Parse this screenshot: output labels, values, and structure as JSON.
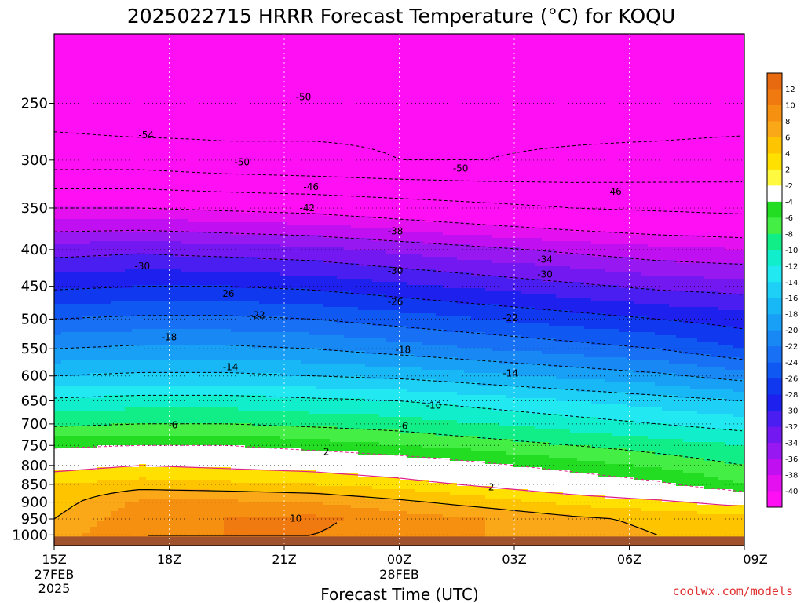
{
  "chart_data": {
    "type": "heatmap",
    "title": "2025022715 HRRR Forecast Temperature (°C) for KOQU",
    "xlabel": "Forecast Time (UTC)",
    "ylabel": "",
    "x_ticks": [
      {
        "hour": 0,
        "label": "15Z",
        "sub": [
          "27FEB",
          "2025"
        ]
      },
      {
        "hour": 3,
        "label": "18Z",
        "sub": []
      },
      {
        "hour": 6,
        "label": "21Z",
        "sub": []
      },
      {
        "hour": 9,
        "label": "00Z",
        "sub": [
          "28FEB"
        ]
      },
      {
        "hour": 12,
        "label": "03Z",
        "sub": []
      },
      {
        "hour": 15,
        "label": "06Z",
        "sub": []
      },
      {
        "hour": 18,
        "label": "09Z",
        "sub": []
      }
    ],
    "y_ticks": [
      250,
      300,
      350,
      400,
      450,
      500,
      550,
      600,
      650,
      700,
      750,
      800,
      850,
      900,
      950,
      1000
    ],
    "y_scale": "log-pressure, inverted",
    "y_range_hPa": [
      1035,
      200
    ],
    "x_range_hours": [
      0,
      18
    ],
    "colorbar": {
      "labels": [
        "12",
        "10",
        "8",
        "6",
        "4",
        "2",
        "-2",
        "-4",
        "-6",
        "-8",
        "-10",
        "-12",
        "-14",
        "-16",
        "-18",
        "-20",
        "-22",
        "-24",
        "-26",
        "-28",
        "-30",
        "-32",
        "-34",
        "-36",
        "-38",
        "-40"
      ],
      "colors": [
        "#e86a10",
        "#f07a10",
        "#f69010",
        "#fba818",
        "#ffc400",
        "#ffe000",
        "#fffa40",
        "#ffffff",
        "#22dd22",
        "#44ee44",
        "#11ee88",
        "#11eecc",
        "#22e8f2",
        "#1ed0f6",
        "#18b8f6",
        "#18a0f6",
        "#1888f4",
        "#1870f4",
        "#1058f2",
        "#1038ee",
        "#1e20ee",
        "#4a1ef0",
        "#7418f2",
        "#9818f2",
        "#c010f2",
        "#e410f0",
        "#ff10f4"
      ]
    },
    "ground_color": "#a0522d",
    "temperature_profile": [
      {
        "p": 1000,
        "t": [
          7,
          10,
          10,
          10,
          9,
          8,
          7,
          6,
          5.5
        ]
      },
      {
        "p": 950,
        "t": [
          6,
          9.5,
          10,
          10.5,
          9,
          8,
          6.5,
          5.5,
          5
        ]
      },
      {
        "p": 900,
        "t": [
          5,
          8.5,
          8.5,
          8,
          6.5,
          5,
          3.5,
          2.5,
          1
        ]
      },
      {
        "p": 850,
        "t": [
          4,
          5,
          4.5,
          4,
          3,
          1.5,
          0,
          -1.5,
          -4
        ]
      },
      {
        "p": 800,
        "t": [
          1,
          2,
          1.5,
          1,
          0,
          -1.5,
          -3,
          -4.5,
          -6
        ]
      },
      {
        "p": 750,
        "t": [
          -2.5,
          -2,
          -2,
          -3,
          -4,
          -5,
          -6,
          -7,
          -8
        ]
      },
      {
        "p": 700,
        "t": [
          -6.5,
          -6,
          -6,
          -6.5,
          -7,
          -8,
          -9,
          -10,
          -11
        ]
      },
      {
        "p": 650,
        "t": [
          -9.5,
          -9,
          -9,
          -9.5,
          -10,
          -11,
          -12,
          -13,
          -14
        ]
      },
      {
        "p": 600,
        "t": [
          -14,
          -13.5,
          -13.5,
          -14,
          -14.5,
          -15.5,
          -16.5,
          -17.5,
          -19
        ]
      },
      {
        "p": 550,
        "t": [
          -18,
          -17.5,
          -17.5,
          -18,
          -19,
          -20,
          -21,
          -22,
          -24
        ]
      },
      {
        "p": 500,
        "t": [
          -22,
          -21.5,
          -21.5,
          -22,
          -23,
          -24,
          -25,
          -26,
          -27
        ]
      },
      {
        "p": 450,
        "t": [
          -26.5,
          -26,
          -26,
          -26.5,
          -27.5,
          -28.5,
          -29.5,
          -30.5,
          -31
        ]
      },
      {
        "p": 400,
        "t": [
          -31,
          -30.5,
          -31,
          -31.5,
          -32.5,
          -33.5,
          -34.5,
          -35.5,
          -36
        ]
      },
      {
        "p": 350,
        "t": [
          -38,
          -38,
          -38.5,
          -39,
          -40,
          -41,
          -42,
          -42.5,
          -43
        ]
      },
      {
        "p": 300,
        "t": [
          -48,
          -48,
          -49,
          -49.5,
          -50,
          -50,
          -49.5,
          -49,
          -48.5
        ]
      },
      {
        "p": 250,
        "t": [
          -52,
          -53,
          -52,
          -51,
          -50.5,
          -51,
          -51.5,
          -52,
          -52
        ]
      },
      {
        "p": 200,
        "t": [
          -50,
          -51,
          -51,
          -50.5,
          -50,
          -50.5,
          -51,
          -51,
          -51
        ]
      }
    ],
    "contour_labels": [
      {
        "text": "-50",
        "h": 6.5,
        "p": 245
      },
      {
        "text": "-54",
        "h": 2.4,
        "p": 277
      },
      {
        "text": "-50",
        "h": 4.9,
        "p": 302
      },
      {
        "text": "-50",
        "h": 10.6,
        "p": 308
      },
      {
        "text": "-46",
        "h": 6.7,
        "p": 327
      },
      {
        "text": "-46",
        "h": 14.6,
        "p": 332
      },
      {
        "text": "-42",
        "h": 6.6,
        "p": 350
      },
      {
        "text": "-38",
        "h": 8.9,
        "p": 377
      },
      {
        "text": "-34",
        "h": 12.8,
        "p": 413
      },
      {
        "text": "-30",
        "h": 2.3,
        "p": 422
      },
      {
        "text": "-30",
        "h": 8.9,
        "p": 428
      },
      {
        "text": "-30",
        "h": 12.8,
        "p": 433
      },
      {
        "text": "-26",
        "h": 4.5,
        "p": 461
      },
      {
        "text": "-26",
        "h": 8.9,
        "p": 473
      },
      {
        "text": "-22",
        "h": 5.3,
        "p": 494
      },
      {
        "text": "-22",
        "h": 11.9,
        "p": 498
      },
      {
        "text": "-18",
        "h": 3.0,
        "p": 530
      },
      {
        "text": "-18",
        "h": 9.1,
        "p": 552
      },
      {
        "text": "-14",
        "h": 4.6,
        "p": 583
      },
      {
        "text": "-14",
        "h": 11.9,
        "p": 595
      },
      {
        "text": "-10",
        "h": 9.9,
        "p": 660
      },
      {
        "text": "-6",
        "h": 3.1,
        "p": 703
      },
      {
        "text": "-6",
        "h": 9.1,
        "p": 705
      },
      {
        "text": "2",
        "h": 7.1,
        "p": 766
      },
      {
        "text": "2",
        "h": 11.4,
        "p": 858
      },
      {
        "text": "10",
        "h": 6.3,
        "p": 949
      }
    ],
    "credit": "coolwx.com/models"
  }
}
